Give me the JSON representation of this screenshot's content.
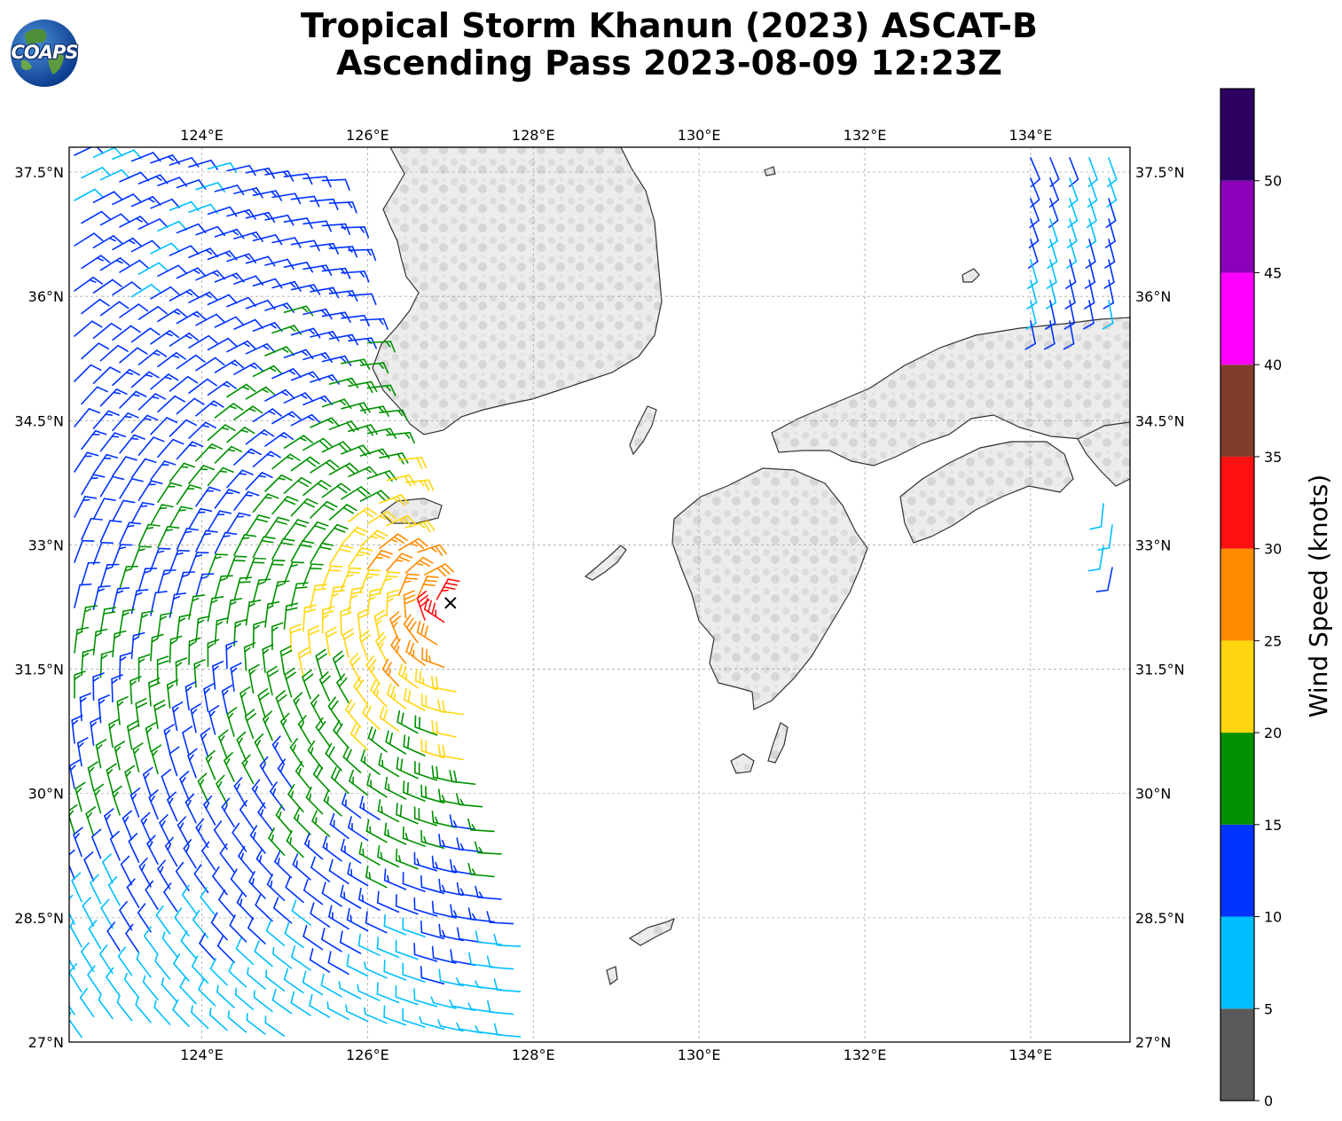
{
  "header": {
    "title_line1": "Tropical Storm Khanun (2023) ASCAT-B",
    "title_line2": "Ascending Pass 2023-08-09 12:23Z",
    "logo_text": "COAPS"
  },
  "map": {
    "lon_range": [
      122.4,
      135.2
    ],
    "lat_range": [
      27.0,
      37.8
    ],
    "lon_ticks": [
      "124°E",
      "126°E",
      "128°E",
      "130°E",
      "132°E",
      "134°E"
    ],
    "lon_tick_values": [
      124,
      126,
      128,
      130,
      132,
      134
    ],
    "lat_ticks": [
      "37.5°N",
      "36°N",
      "34.5°N",
      "33°N",
      "31.5°N",
      "30°N",
      "28.5°N",
      "27°N"
    ],
    "lat_tick_values": [
      37.5,
      36,
      34.5,
      33,
      31.5,
      30,
      28.5,
      27
    ],
    "grid": true,
    "land_color": "#e8e8e8",
    "coast_color": "#333333",
    "storm_center": {
      "lon": 127.0,
      "lat": 32.3
    }
  },
  "colorbar": {
    "label": "Wind Speed (knots)",
    "ticks": [
      "0",
      "5",
      "10",
      "15",
      "20",
      "25",
      "30",
      "35",
      "40",
      "45",
      "50"
    ],
    "tick_values": [
      0,
      5,
      10,
      15,
      20,
      25,
      30,
      35,
      40,
      45,
      50
    ],
    "range": [
      0,
      55
    ],
    "bins": [
      {
        "min": 0,
        "max": 5,
        "color": "#595959"
      },
      {
        "min": 5,
        "max": 10,
        "color": "#00bfff"
      },
      {
        "min": 10,
        "max": 15,
        "color": "#0033ff"
      },
      {
        "min": 15,
        "max": 20,
        "color": "#009100"
      },
      {
        "min": 20,
        "max": 25,
        "color": "#ffd60f"
      },
      {
        "min": 25,
        "max": 30,
        "color": "#ff8c00"
      },
      {
        "min": 30,
        "max": 35,
        "color": "#ff1010"
      },
      {
        "min": 35,
        "max": 40,
        "color": "#803d2a"
      },
      {
        "min": 40,
        "max": 45,
        "color": "#ff00ff"
      },
      {
        "min": 45,
        "max": 50,
        "color": "#8b00b8"
      },
      {
        "min": 50,
        "max": 55,
        "color": "#2c0060"
      }
    ]
  }
}
